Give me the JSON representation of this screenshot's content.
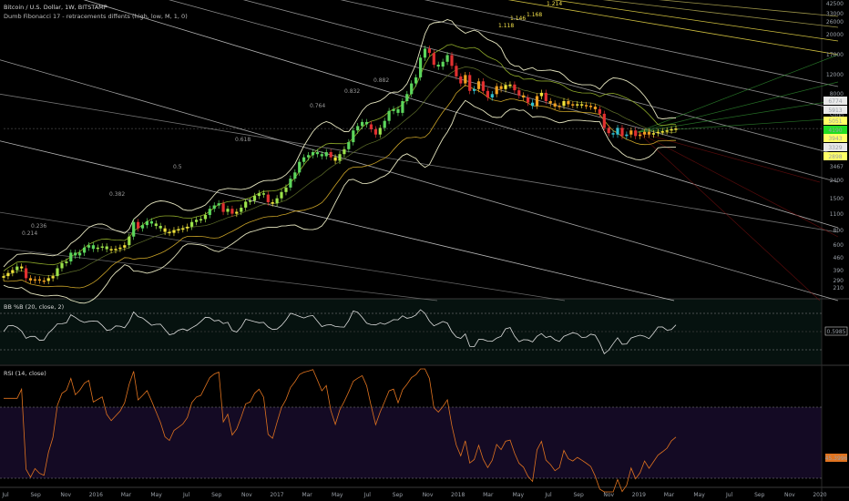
{
  "header": {
    "title": "Bitcoin / U.S. Dollar, 1W, BITSTAMP",
    "indicator": "Dumb Fibonacci 17 - retracements diffents (high, low, M, 1, 0)",
    "pane2_title": "BB %B (20, close, 2)",
    "pane3_title": "RSI (14, close)"
  },
  "colors": {
    "background": "#000000",
    "fib_line": "#d9d9d9",
    "fib_gold": "#f2e04a",
    "bollinger": "#e6e6c0",
    "inner_band": "#8ea92a",
    "percent_b": "#dcdcdc",
    "rsi": "#e0731f",
    "rsi_bg": "#140a24"
  },
  "chart_data": [
    {
      "type": "candlestick",
      "title": "Bitcoin / U.S. Dollar, 1W, BITSTAMP",
      "y_scale": "log",
      "x_tick_labels": [
        "Jul",
        "Sep",
        "Nov",
        "2016",
        "Mar",
        "May",
        "Jul",
        "Sep",
        "Nov",
        "2017",
        "Mar",
        "May",
        "Jul",
        "Sep",
        "Nov",
        "2018",
        "Mar",
        "May",
        "Jul",
        "Sep",
        "Nov",
        "2019",
        "Mar",
        "May",
        "Jul",
        "Sep",
        "Nov",
        "2020"
      ],
      "y_tick_labels": [
        "42500",
        "33000",
        "26000",
        "20000",
        "17000",
        "12000",
        "8000",
        "5000",
        "3467",
        "2400",
        "1500",
        "1100",
        "800",
        "600",
        "460",
        "390",
        "290",
        "210"
      ],
      "price_labels": [
        {
          "text": "6774",
          "color": "#ffffff"
        },
        {
          "text": "5913",
          "color": "#ffffff"
        },
        {
          "text": "5051",
          "color": "#ffff66"
        },
        {
          "text": "4190",
          "color": "#22dd22"
        },
        {
          "text": "3943",
          "color": "#ffff66"
        },
        {
          "text": "3329",
          "color": "#ffffff"
        },
        {
          "text": "2898",
          "color": "#ffff66"
        }
      ],
      "fib_levels": [
        "0.214",
        "0.236",
        "0.382",
        "0.5",
        "0.618",
        "0.764",
        "0.832",
        "0.882",
        "1.118",
        "1.146",
        "1.168",
        "1.214"
      ],
      "weekly_close": [
        250,
        265,
        280,
        300,
        290,
        240,
        230,
        235,
        230,
        228,
        240,
        250,
        290,
        320,
        330,
        390,
        370,
        390,
        430,
        450,
        420,
        430,
        440,
        418,
        410,
        420,
        430,
        450,
        530,
        700,
        620,
        660,
        710,
        680,
        650,
        620,
        580,
        570,
        600,
        610,
        620,
        640,
        700,
        730,
        740,
        800,
        900,
        960,
        1000,
        850,
        900,
        820,
        850,
        920,
        1030,
        1050,
        1150,
        1210,
        1180,
        1020,
        1000,
        1100,
        1240,
        1350,
        1600,
        1800,
        2200,
        2400,
        2500,
        2650,
        2550,
        2450,
        2650,
        2400,
        2250,
        2550,
        2800,
        3200,
        4000,
        4350,
        4700,
        4500,
        4100,
        3700,
        4200,
        4800,
        5800,
        6000,
        5600,
        7000,
        8000,
        9800,
        11000,
        16000,
        19000,
        17500,
        14000,
        13500,
        14800,
        16800,
        13700,
        11200,
        9800,
        11500,
        8500,
        8800,
        10200,
        8500,
        7500,
        8000,
        9300,
        8800,
        9500,
        9600,
        8600,
        7800,
        7500,
        6800,
        6400,
        7700,
        8200,
        7000,
        6700,
        6300,
        6400,
        7000,
        6600,
        6500,
        6600,
        6500,
        6400,
        6300,
        6000,
        5500,
        4200,
        3800,
        3700,
        4200,
        3600,
        3700,
        4000,
        3600,
        3700,
        3900,
        3700,
        3800,
        3900,
        3950,
        4000,
        4100,
        4150
      ]
    },
    {
      "type": "line",
      "title": "BB %B (20, close, 2)",
      "value_label": "0.5985",
      "levels": [
        1,
        0.5,
        0
      ]
    },
    {
      "type": "line",
      "title": "RSI (14, close)",
      "value_label": "45.3996",
      "levels": [
        70,
        30
      ]
    }
  ]
}
